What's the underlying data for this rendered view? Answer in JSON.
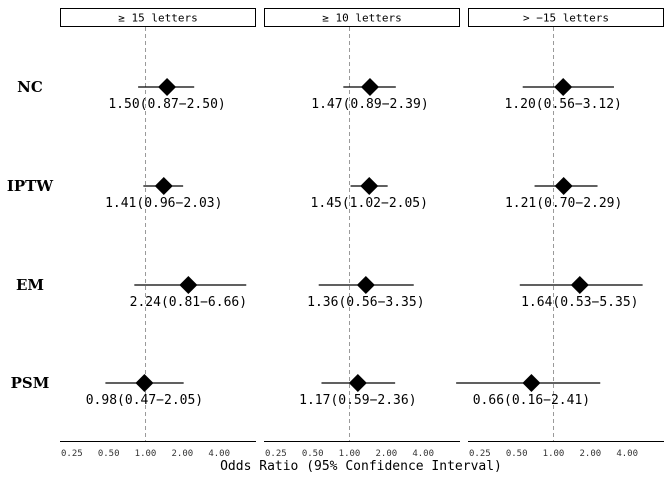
{
  "chart_data": {
    "type": "forest",
    "xlabel": "Odds Ratio (95% Confidence Interval)",
    "x_scale": "log",
    "xlim": [
      0.2,
      8.0
    ],
    "reference_line": 1.0,
    "x_ticks": [
      0.25,
      0.5,
      1.0,
      2.0,
      4.0
    ],
    "x_tick_labels": [
      "0.25",
      "0.50",
      "1.00",
      "2.00",
      "4.00"
    ],
    "panels": [
      "≥ 15 letters",
      "≥ 10 letters",
      "> −15 letters"
    ],
    "rows": [
      "NC",
      "IPTW",
      "EM",
      "PSM"
    ],
    "estimates": [
      [
        {
          "or": 1.5,
          "lo": 0.87,
          "hi": 2.5,
          "label": "1.50(0.87−2.50)"
        },
        {
          "or": 1.41,
          "lo": 0.96,
          "hi": 2.03,
          "label": "1.41(0.96−2.03)"
        },
        {
          "or": 2.24,
          "lo": 0.81,
          "hi": 6.66,
          "label": "2.24(0.81−6.66)"
        },
        {
          "or": 0.98,
          "lo": 0.47,
          "hi": 2.05,
          "label": "0.98(0.47−2.05)"
        }
      ],
      [
        {
          "or": 1.47,
          "lo": 0.89,
          "hi": 2.39,
          "label": "1.47(0.89−2.39)"
        },
        {
          "or": 1.45,
          "lo": 1.02,
          "hi": 2.05,
          "label": "1.45(1.02−2.05)"
        },
        {
          "or": 1.36,
          "lo": 0.56,
          "hi": 3.35,
          "label": "1.36(0.56−3.35)"
        },
        {
          "or": 1.17,
          "lo": 0.59,
          "hi": 2.36,
          "label": "1.17(0.59−2.36)"
        }
      ],
      [
        {
          "or": 1.2,
          "lo": 0.56,
          "hi": 3.12,
          "label": "1.20(0.56−3.12)"
        },
        {
          "or": 1.21,
          "lo": 0.7,
          "hi": 2.29,
          "label": "1.21(0.70−2.29)"
        },
        {
          "or": 1.64,
          "lo": 0.53,
          "hi": 5.35,
          "label": "1.64(0.53−5.35)"
        },
        {
          "or": 0.66,
          "lo": 0.16,
          "hi": 2.41,
          "label": "0.66(0.16−2.41)"
        }
      ]
    ],
    "grid": false,
    "colors": {
      "marker": "#000000",
      "ci_line": "#000000",
      "reference_line": "#999999",
      "axis": "#000000"
    }
  }
}
